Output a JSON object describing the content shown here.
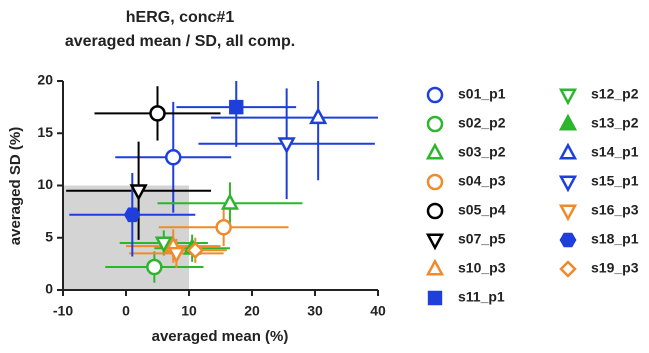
{
  "chart_data": {
    "type": "scatter",
    "title": "hERG, conc#1",
    "subtitle": "averaged mean / SD, all comp.",
    "x_label": "averaged mean (%)",
    "y_label": "averaged SD (%)",
    "xlim": [
      -10,
      40
    ],
    "xticks": [
      -10,
      0,
      10,
      20,
      30,
      40
    ],
    "ylim": [
      0,
      20
    ],
    "yticks": [
      0,
      5,
      10,
      15,
      20
    ],
    "shade": {
      "color": "#d4d4d4",
      "xlim": [
        -10,
        10
      ],
      "ylim": [
        0,
        10
      ]
    },
    "series": [
      {
        "name": "s01_p1",
        "color": "#1f3fdc",
        "marker": "circle",
        "filled": false,
        "x": [
          7.5
        ],
        "values": [
          12.7
        ],
        "xerr": [
          9.2
        ],
        "yerr": [
          5.3
        ]
      },
      {
        "name": "s02_p2",
        "color": "#2db52d",
        "marker": "circle",
        "filled": false,
        "x": [
          4.5
        ],
        "values": [
          2.2
        ],
        "xerr": [
          7.8
        ],
        "yerr": [
          1.5
        ]
      },
      {
        "name": "s03_p2",
        "color": "#2db52d",
        "marker": "triangle-up",
        "filled": false,
        "x": [
          16.5
        ],
        "values": [
          8.3
        ],
        "xerr": [
          11.5
        ],
        "yerr": [
          2
        ]
      },
      {
        "name": "s04_p3",
        "color": "#f08a2a",
        "marker": "circle",
        "filled": false,
        "x": [
          15.5
        ],
        "values": [
          6
        ],
        "xerr": [
          10.3
        ],
        "yerr": [
          1.8
        ]
      },
      {
        "name": "s05_p4",
        "color": "#000000",
        "marker": "circle",
        "filled": false,
        "x": [
          5
        ],
        "values": [
          16.9
        ],
        "xerr": [
          10
        ],
        "yerr": [
          2.6
        ]
      },
      {
        "name": "s07_p5",
        "color": "#000000",
        "marker": "triangle-down",
        "filled": false,
        "x": [
          2
        ],
        "values": [
          9.5
        ],
        "xerr": [
          11.5
        ],
        "yerr": [
          4.7
        ]
      },
      {
        "name": "s10_p3",
        "color": "#f08a2a",
        "marker": "triangle-up",
        "filled": false,
        "x": [
          7.5
        ],
        "values": [
          4.2
        ],
        "xerr": [
          7.5
        ],
        "yerr": [
          1.6
        ]
      },
      {
        "name": "s11_p1",
        "color": "#1f3fdc",
        "marker": "square",
        "filled": true,
        "x": [
          17.5
        ],
        "values": [
          17.5
        ],
        "xerr": [
          9.5
        ],
        "yerr": [
          3.8
        ]
      },
      {
        "name": "s12_p2",
        "color": "#2db52d",
        "marker": "triangle-down",
        "filled": false,
        "x": [
          6
        ],
        "values": [
          4.5
        ],
        "xerr": [
          7
        ],
        "yerr": [
          1.2
        ]
      },
      {
        "name": "s13_p2",
        "color": "#2db52d",
        "marker": "triangle-up",
        "filled": true,
        "x": [
          10.5
        ],
        "values": [
          4
        ],
        "xerr": [
          6
        ],
        "yerr": [
          1.3
        ]
      },
      {
        "name": "s14_p1",
        "color": "#1f3fdc",
        "marker": "triangle-up",
        "filled": false,
        "x": [
          30.5
        ],
        "values": [
          16.5
        ],
        "xerr": [
          17
        ],
        "yerr": [
          6
        ]
      },
      {
        "name": "s15_p1",
        "color": "#1f3fdc",
        "marker": "triangle-down",
        "filled": false,
        "x": [
          25.5
        ],
        "values": [
          14
        ],
        "xerr": [
          14
        ],
        "yerr": [
          5.3
        ]
      },
      {
        "name": "s16_p3",
        "color": "#f08a2a",
        "marker": "triangle-down",
        "filled": false,
        "x": [
          8
        ],
        "values": [
          3.5
        ],
        "xerr": [
          7.5
        ],
        "yerr": [
          1.4
        ]
      },
      {
        "name": "s18_p1",
        "color": "#1f3fdc",
        "marker": "hexagon",
        "filled": true,
        "x": [
          1
        ],
        "values": [
          7.2
        ],
        "xerr": [
          10
        ],
        "yerr": [
          4
        ]
      },
      {
        "name": "s19_p3",
        "color": "#f08a2a",
        "marker": "diamond",
        "filled": false,
        "x": [
          11
        ],
        "values": [
          3.8
        ],
        "xerr": [
          5
        ],
        "yerr": [
          1.2
        ]
      }
    ]
  }
}
